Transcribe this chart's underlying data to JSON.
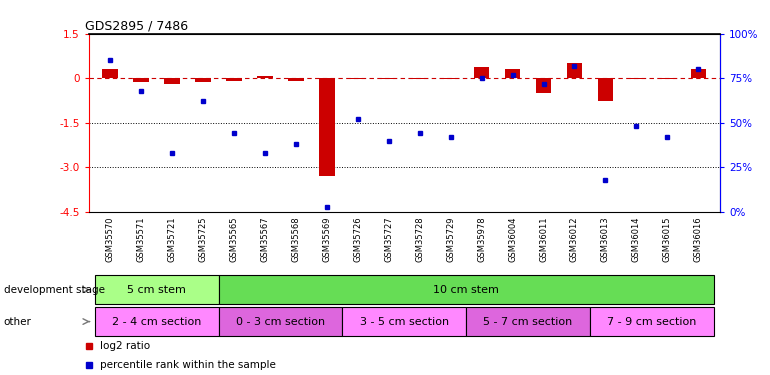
{
  "title": "GDS2895 / 7486",
  "samples": [
    "GSM35570",
    "GSM35571",
    "GSM35721",
    "GSM35725",
    "GSM35565",
    "GSM35567",
    "GSM35568",
    "GSM35569",
    "GSM35726",
    "GSM35727",
    "GSM35728",
    "GSM35729",
    "GSM35978",
    "GSM36004",
    "GSM36011",
    "GSM36012",
    "GSM36013",
    "GSM36014",
    "GSM36015",
    "GSM36016"
  ],
  "log2_ratio": [
    0.3,
    -0.12,
    -0.2,
    -0.12,
    -0.08,
    0.06,
    -0.08,
    -3.3,
    -0.04,
    -0.04,
    -0.04,
    -0.04,
    0.38,
    0.32,
    -0.5,
    0.52,
    -0.75,
    -0.04,
    -0.04,
    0.32
  ],
  "percentile": [
    85,
    68,
    33,
    62,
    44,
    33,
    38,
    3,
    52,
    40,
    44,
    42,
    75,
    77,
    72,
    82,
    18,
    48,
    42,
    80
  ],
  "ylim_left": [
    -4.5,
    1.5
  ],
  "ylim_right": [
    0,
    100
  ],
  "yticks_left": [
    1.5,
    0.0,
    -1.5,
    -3.0,
    -4.5
  ],
  "yticks_right": [
    100,
    75,
    50,
    25,
    0
  ],
  "bar_color_red": "#cc0000",
  "bar_color_blue": "#0000cc",
  "dev_stage_groups": [
    {
      "label": "5 cm stem",
      "start": 0,
      "end": 4,
      "color": "#aaff88"
    },
    {
      "label": "10 cm stem",
      "start": 4,
      "end": 20,
      "color": "#66dd55"
    }
  ],
  "other_groups": [
    {
      "label": "2 - 4 cm section",
      "start": 0,
      "end": 4,
      "color": "#ff88ff"
    },
    {
      "label": "0 - 3 cm section",
      "start": 4,
      "end": 8,
      "color": "#dd66dd"
    },
    {
      "label": "3 - 5 cm section",
      "start": 8,
      "end": 12,
      "color": "#ff88ff"
    },
    {
      "label": "5 - 7 cm section",
      "start": 12,
      "end": 16,
      "color": "#dd66dd"
    },
    {
      "label": "7 - 9 cm section",
      "start": 16,
      "end": 20,
      "color": "#ff88ff"
    }
  ],
  "dev_stage_label": "development stage",
  "other_label": "other",
  "legend_red": "log2 ratio",
  "legend_blue": "percentile rank within the sample",
  "bg_color": "#ffffff",
  "tick_bg": "#c8c8c8"
}
